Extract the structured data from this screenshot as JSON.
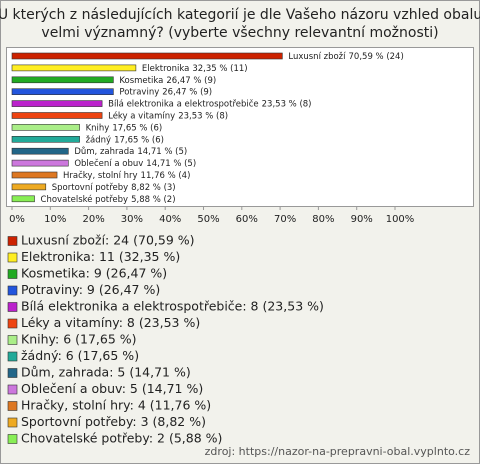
{
  "chart_data": {
    "type": "bar",
    "orientation": "horizontal",
    "title_lines": [
      "U kterých z následujících kategorií je dle Vašeho názoru vzhled obalu",
      "velmi významný? (vyberte všechny relevantní možnosti)"
    ],
    "categories": [
      "Luxusní zboží",
      "Elektronika",
      "Kosmetika",
      "Potraviny",
      "Bílá elektronika a elektrospotřebiče",
      "Léky a vitamíny",
      "Knihy",
      "žádný",
      "Dům, zahrada",
      "Oblečení a obuv",
      "Hračky, stolní hry",
      "Sportovní potřeby",
      "Chovatelské potřeby"
    ],
    "values": [
      70.59,
      32.35,
      26.47,
      26.47,
      23.53,
      23.53,
      17.65,
      17.65,
      14.71,
      14.71,
      11.76,
      8.82,
      5.88
    ],
    "value_labels": [
      "70,59 % (24)",
      "32,35 % (11)",
      "26,47 % (9)",
      "26,47 % (9)",
      "23,53 % (8)",
      "23,53 % (8)",
      "17,65 % (6)",
      "17,65 % (6)",
      "14,71 % (5)",
      "14,71 % (5)",
      "11,76 % (4)",
      "8,82 % (3)",
      "5,88 % (2)"
    ],
    "legend_labels": [
      "Luxusní zboží: 24 (70,59 %)",
      "Elektronika: 11 (32,35 %)",
      "Kosmetika: 9 (26,47 %)",
      "Potraviny: 9 (26,47 %)",
      "Bílá elektronika a elektrospotřebiče: 8 (23,53 %)",
      "Léky a vitamíny: 8 (23,53 %)",
      "Knihy: 6 (17,65 %)",
      "žádný: 6 (17,65 %)",
      "Dům, zahrada: 5 (14,71 %)",
      "Oblečení a obuv: 5 (14,71 %)",
      "Hračky, stolní hry: 4 (11,76 %)",
      "Sportovní potřeby: 3 (8,82 %)",
      "Chovatelské potřeby: 2 (5,88 %)"
    ],
    "colors": [
      "#cc2200",
      "#ffee22",
      "#22aa22",
      "#2255dd",
      "#bb22cc",
      "#ee4411",
      "#aaee88",
      "#22aa99",
      "#226688",
      "#cc77dd",
      "#dd7722",
      "#eeaa22",
      "#88ee55"
    ],
    "xlim": [
      0,
      100
    ],
    "xticks": [
      {
        "value": 0,
        "label": "0%"
      },
      {
        "value": 10,
        "label": "10%"
      },
      {
        "value": 20,
        "label": "20%"
      },
      {
        "value": 30,
        "label": "30%"
      },
      {
        "value": 40,
        "label": "40%"
      },
      {
        "value": 50,
        "label": "50%"
      },
      {
        "value": 60,
        "label": "60%"
      },
      {
        "value": 70,
        "label": "70%"
      },
      {
        "value": 80,
        "label": "80%"
      },
      {
        "value": 90,
        "label": "90%"
      },
      {
        "value": 100,
        "label": "100%"
      }
    ],
    "source": "zdroj: https://nazor-na-prepravni-obal.vyplnto.cz"
  }
}
